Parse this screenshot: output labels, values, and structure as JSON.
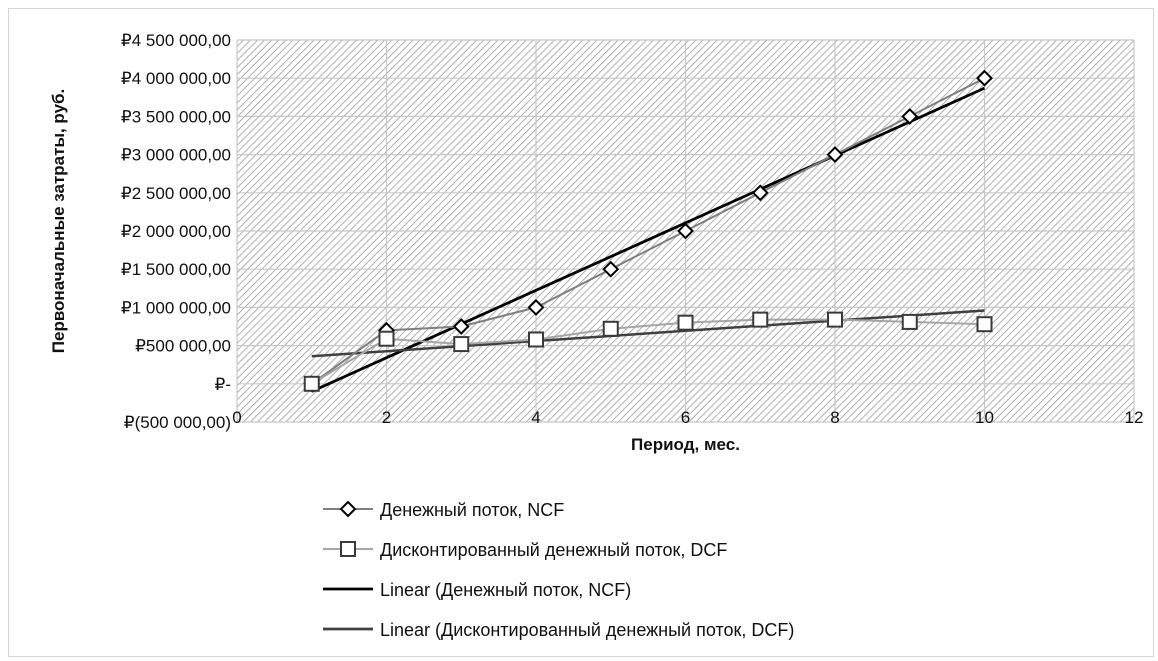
{
  "chart_data": {
    "type": "scatter",
    "xlabel": "Период, мес.",
    "ylabel": "Первоначальные затраты, руб.",
    "xlim": [
      0,
      12
    ],
    "ylim": [
      -500000,
      4500000
    ],
    "x_ticks": [
      0,
      2,
      4,
      6,
      8,
      10,
      12
    ],
    "x_tick_labels": [
      "0",
      "2",
      "4",
      "6",
      "8",
      "10",
      "12"
    ],
    "y_ticks": [
      -500000,
      0,
      500000,
      1000000,
      1500000,
      2000000,
      2500000,
      3000000,
      3500000,
      4000000,
      4500000
    ],
    "y_tick_labels": [
      "₽(500 000,00)",
      "₽-",
      "₽500 000,00",
      "₽1 000 000,00",
      "₽1 500 000,00",
      "₽2 000 000,00",
      "₽2 500 000,00",
      "₽3 000 000,00",
      "₽3 500 000,00",
      "₽4 000 000,00",
      "₽4 500 000,00"
    ],
    "grid": true,
    "legend_position": "bottom",
    "series": [
      {
        "name": "Денежный поток, NCF",
        "marker": "diamond",
        "color": "#7f7f7f",
        "x": [
          1,
          2,
          3,
          4,
          5,
          6,
          7,
          8,
          9,
          10
        ],
        "y": [
          0,
          700000,
          750000,
          1000000,
          1500000,
          2000000,
          2500000,
          3000000,
          3500000,
          4000000
        ]
      },
      {
        "name": "Дисконтированный денежный поток, DCF",
        "marker": "square",
        "color": "#a6a6a6",
        "x": [
          1,
          2,
          3,
          4,
          5,
          6,
          7,
          8,
          9,
          10
        ],
        "y": [
          0,
          590000,
          520000,
          580000,
          720000,
          800000,
          840000,
          840000,
          810000,
          780000
        ]
      }
    ],
    "trendlines": [
      {
        "name": "Linear (Денежный поток, NCF)",
        "color": "#000000",
        "x": [
          1,
          10
        ],
        "y": [
          -100000,
          3870000
        ]
      },
      {
        "name": "Linear (Дисконтированный денежный поток, DCF)",
        "color": "#404040",
        "x": [
          1,
          10
        ],
        "y": [
          360000,
          960000
        ]
      }
    ]
  }
}
